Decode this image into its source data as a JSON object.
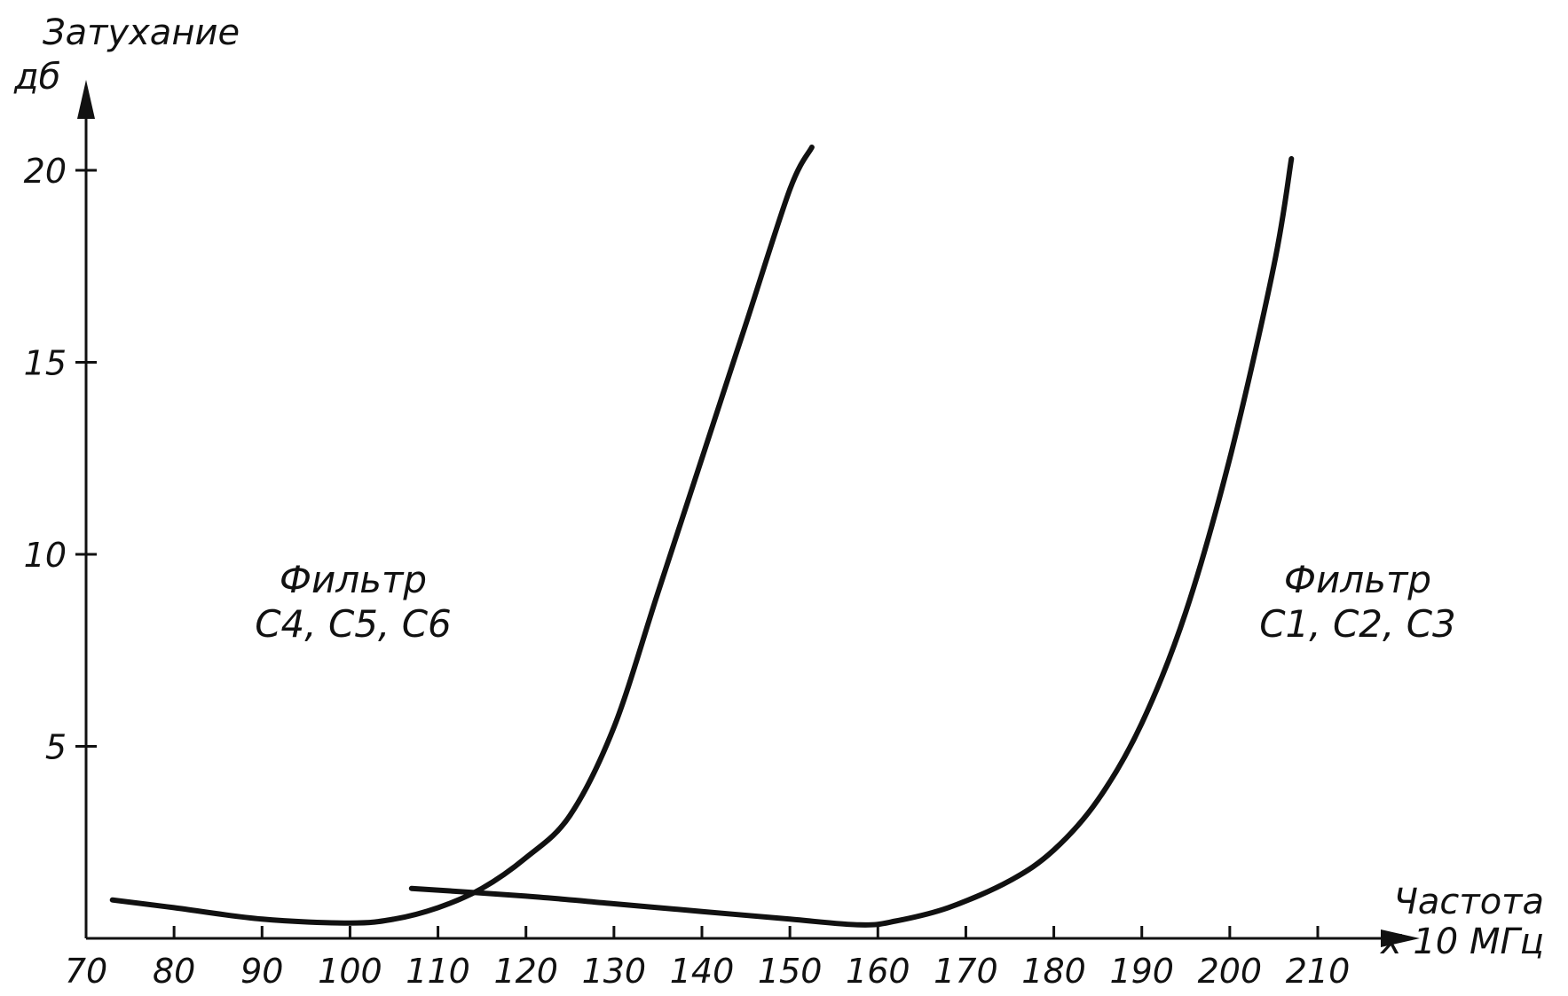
{
  "chart_data": {
    "type": "line",
    "ylabel_line1": "Затухание",
    "ylabel_line2": "дб",
    "xlabel_line1": "Частота",
    "xlabel_line2": "х 10 МГц",
    "xlim": [
      70,
      210
    ],
    "ylim": [
      0,
      20
    ],
    "x_ticks": [
      70,
      80,
      90,
      100,
      110,
      120,
      130,
      140,
      150,
      160,
      170,
      180,
      190,
      200,
      210
    ],
    "y_ticks": [
      5,
      10,
      15,
      20
    ],
    "grid": false,
    "series": [
      {
        "name": "Фильтр С4, С5, С6",
        "name_line1": "Фильтр",
        "name_line2": "С4, С5, С6",
        "x": [
          73,
          80,
          90,
          100,
          105,
          110,
          115,
          120,
          125,
          130,
          135,
          140,
          145,
          150,
          152.5
        ],
        "y": [
          1.0,
          0.8,
          0.5,
          0.4,
          0.5,
          0.8,
          1.3,
          2.1,
          3.2,
          5.5,
          9.0,
          12.5,
          16.0,
          19.5,
          20.6
        ]
      },
      {
        "name": "Фильтр С1, С2, С3",
        "name_line1": "Фильтр",
        "name_line2": "С1, С2, С3",
        "x": [
          107,
          120,
          130,
          140,
          150,
          158,
          162,
          168,
          175,
          180,
          185,
          190,
          195,
          200,
          205,
          207
        ],
        "y": [
          1.3,
          1.1,
          0.9,
          0.7,
          0.5,
          0.35,
          0.45,
          0.8,
          1.5,
          2.3,
          3.6,
          5.6,
          8.5,
          12.5,
          17.5,
          20.3
        ]
      }
    ]
  }
}
